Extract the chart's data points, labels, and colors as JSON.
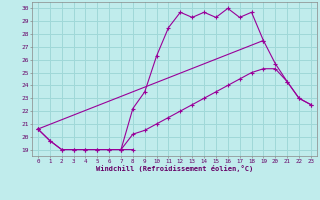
{
  "xlabel": "Windchill (Refroidissement éolien,°C)",
  "bg_color": "#c0ecec",
  "grid_color": "#a0d8d8",
  "line_color": "#990099",
  "xlim": [
    -0.5,
    23.5
  ],
  "ylim": [
    18.5,
    30.5
  ],
  "xticks": [
    0,
    1,
    2,
    3,
    4,
    5,
    6,
    7,
    8,
    9,
    10,
    11,
    12,
    13,
    14,
    15,
    16,
    17,
    18,
    19,
    20,
    21,
    22,
    23
  ],
  "yticks": [
    19,
    20,
    21,
    22,
    23,
    24,
    25,
    26,
    27,
    28,
    29,
    30
  ],
  "series": [
    {
      "x": [
        0,
        1,
        2,
        3,
        4,
        5,
        6,
        7,
        8
      ],
      "y": [
        20.6,
        19.7,
        19.0,
        19.0,
        19.0,
        19.0,
        19.0,
        19.0,
        19.0
      ]
    },
    {
      "x": [
        7,
        8,
        9,
        10,
        11,
        12,
        13,
        14,
        15,
        16,
        17,
        18,
        19
      ],
      "y": [
        19.0,
        22.2,
        23.5,
        26.3,
        28.5,
        29.7,
        29.3,
        29.7,
        29.3,
        30.0,
        29.3,
        29.7,
        27.5
      ]
    },
    {
      "x": [
        0,
        19,
        20,
        21,
        22,
        23
      ],
      "y": [
        20.6,
        27.5,
        25.7,
        24.3,
        23.0,
        22.5
      ]
    },
    {
      "x": [
        0,
        1,
        2,
        3,
        4,
        5,
        6,
        7,
        8,
        9,
        10,
        11,
        12,
        13,
        14,
        15,
        16,
        17,
        18,
        19,
        20,
        21,
        22,
        23
      ],
      "y": [
        20.6,
        19.7,
        19.0,
        19.0,
        19.0,
        19.0,
        19.0,
        19.0,
        20.2,
        20.5,
        21.0,
        21.5,
        22.0,
        22.5,
        23.0,
        23.5,
        24.0,
        24.5,
        25.0,
        25.3,
        25.3,
        24.3,
        23.0,
        22.5
      ]
    }
  ]
}
